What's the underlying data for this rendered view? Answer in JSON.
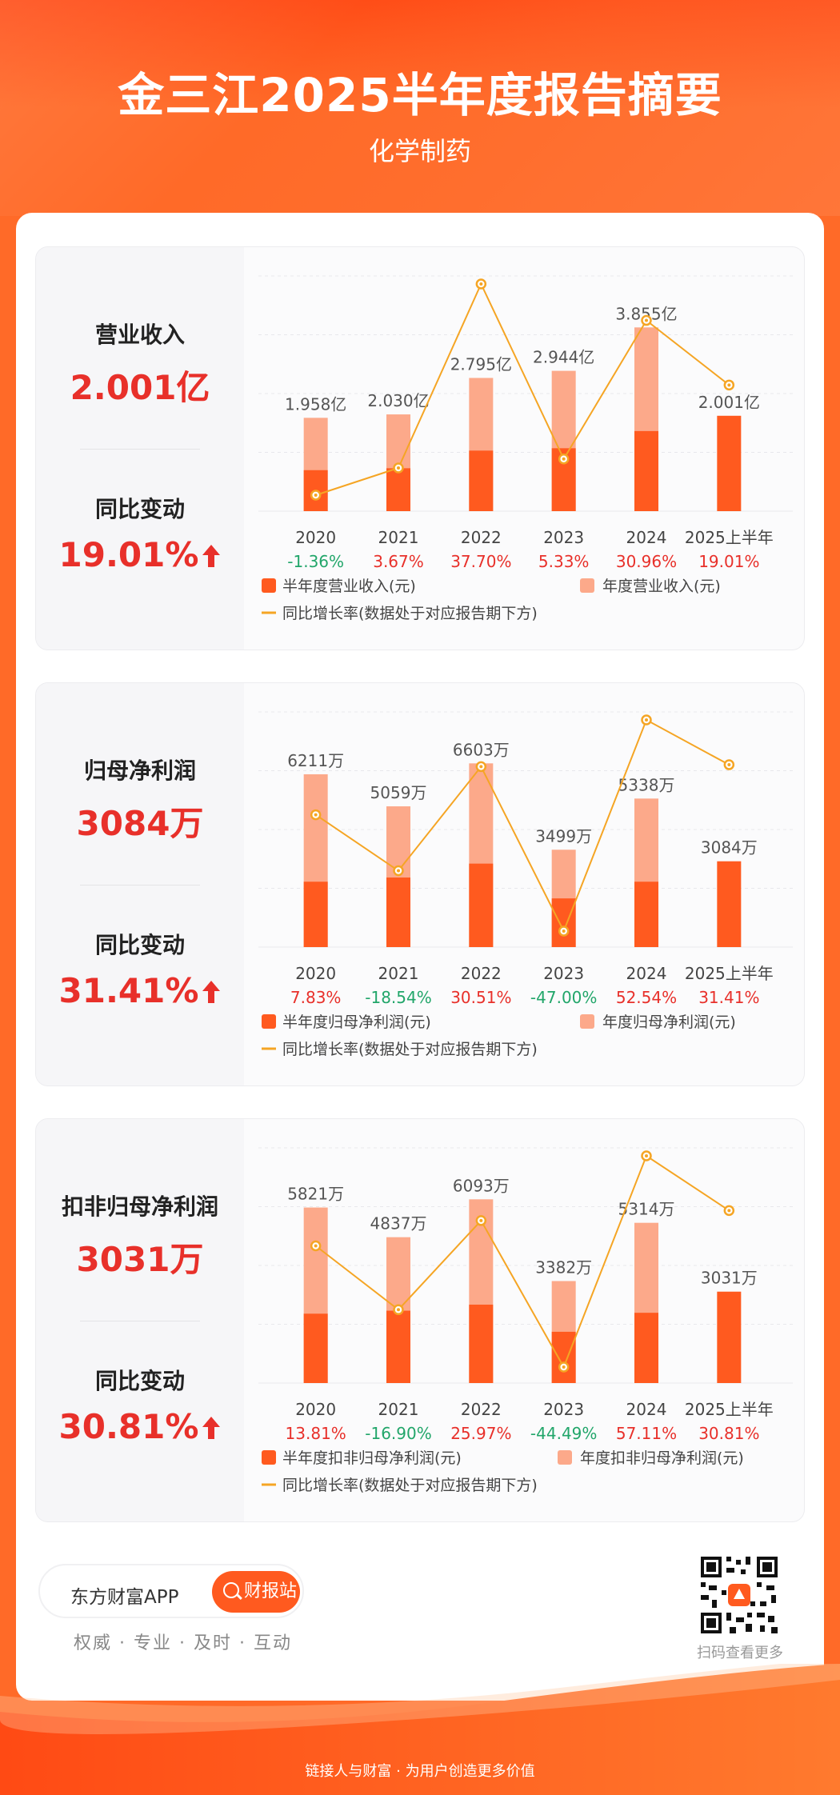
{
  "header": {
    "title": "金三江2025半年度报告摘要",
    "subtitle": "化学制药"
  },
  "colors": {
    "half_bar": "#ff5a1f",
    "annual_bar": "#fca98a",
    "growth_line": "#f5a524",
    "positive": "#e8302a",
    "negative": "#22a66a"
  },
  "panels": [
    {
      "metric": "营业收入",
      "value": "2.001亿",
      "change_label": "同比变动",
      "change_value": "19.01%",
      "legend_half": "半年度营业收入(元)",
      "legend_annual": "年度营业收入(元)",
      "legend_line": "同比增长率(数据处于对应报告期下方)"
    },
    {
      "metric": "归母净利润",
      "value": "3084万",
      "change_label": "同比变动",
      "change_value": "31.41%",
      "legend_half": "半年度归母净利润(元)",
      "legend_annual": "年度归母净利润(元)",
      "legend_line": "同比增长率(数据处于对应报告期下方)"
    },
    {
      "metric": "扣非归母净利润",
      "value": "3031万",
      "change_label": "同比变动",
      "change_value": "30.81%",
      "legend_half": "半年度扣非归母净利润(元)",
      "legend_annual": "年度扣非归母净利润(元)",
      "legend_line": "同比增长率(数据处于对应报告期下方)"
    }
  ],
  "chart_data": [
    {
      "type": "bar",
      "categories": [
        "2020",
        "2021",
        "2022",
        "2023",
        "2024",
        "2025上半年"
      ],
      "annual_values": [
        1.958,
        2.03,
        2.795,
        2.944,
        3.855,
        null
      ],
      "half_values": [
        0.86,
        0.9,
        1.27,
        1.32,
        1.68,
        2.001
      ],
      "bar_labels": [
        "1.958亿",
        "2.030亿",
        "2.795亿",
        "2.944亿",
        "3.855亿",
        "2.001亿"
      ],
      "growth": [
        -1.36,
        3.67,
        37.7,
        5.33,
        30.96,
        19.01
      ],
      "growth_labels": [
        "-1.36%",
        "3.67%",
        "37.70%",
        "5.33%",
        "30.96%",
        "19.01%"
      ],
      "unit": "亿"
    },
    {
      "type": "bar",
      "categories": [
        "2020",
        "2021",
        "2022",
        "2023",
        "2024",
        "2025上半年"
      ],
      "annual_values": [
        6211,
        5059,
        6603,
        3499,
        5338,
        null
      ],
      "half_values": [
        2350,
        2500,
        3000,
        1750,
        2350,
        3084
      ],
      "bar_labels": [
        "6211万",
        "5059万",
        "6603万",
        "3499万",
        "5338万",
        "3084万"
      ],
      "growth": [
        7.83,
        -18.54,
        30.51,
        -47.0,
        52.54,
        31.41
      ],
      "growth_labels": [
        "7.83%",
        "-18.54%",
        "30.51%",
        "-47.00%",
        "52.54%",
        "31.41%"
      ],
      "unit": "万"
    },
    {
      "type": "bar",
      "categories": [
        "2020",
        "2021",
        "2022",
        "2023",
        "2024",
        "2025上半年"
      ],
      "annual_values": [
        5821,
        4837,
        6093,
        3382,
        5314,
        null
      ],
      "half_values": [
        2300,
        2400,
        2600,
        1700,
        2330,
        3031
      ],
      "bar_labels": [
        "5821万",
        "4837万",
        "6093万",
        "3382万",
        "5314万",
        "3031万"
      ],
      "growth": [
        13.81,
        -16.9,
        25.97,
        -44.49,
        57.11,
        30.81
      ],
      "growth_labels": [
        "13.81%",
        "-16.90%",
        "25.97%",
        "-44.49%",
        "57.11%",
        "30.81%"
      ],
      "unit": "万"
    }
  ],
  "footer": {
    "app_name": "东方财富APP",
    "button": "财报站",
    "slogan": "权威 · 专业 · 及时 · 互动",
    "qr_label": "扫码查看更多",
    "bottom_text": "链接人与财富 · 为用户创造更多价值"
  }
}
